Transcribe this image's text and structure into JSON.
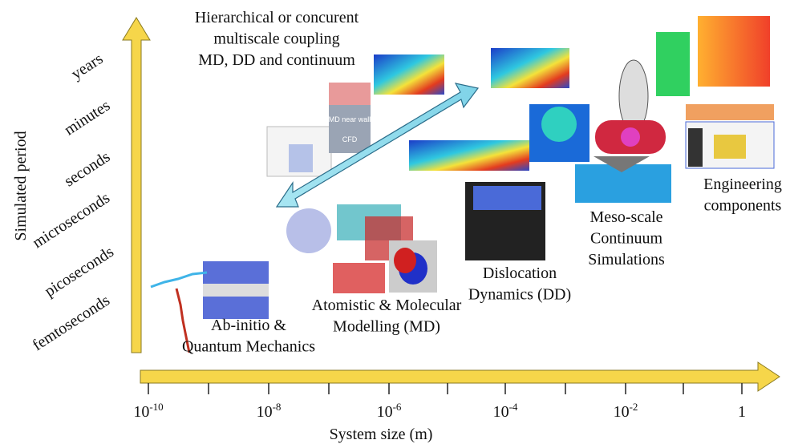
{
  "y_axis": {
    "title": "Simulated period",
    "labels": [
      "years",
      "minutes",
      "seconds",
      "microseconds",
      "picoseconds",
      "femtoseconds"
    ]
  },
  "x_axis": {
    "title": "System size (m)",
    "ticks": [
      {
        "base": "10",
        "exponent": "-10"
      },
      {
        "base": "10",
        "exponent": "-8"
      },
      {
        "base": "10",
        "exponent": "-6"
      },
      {
        "base": "10",
        "exponent": "-4"
      },
      {
        "base": "10",
        "exponent": "-2"
      },
      {
        "base": "1"
      }
    ]
  },
  "captions": [
    {
      "lines": [
        "Hierarchical or concurent",
        "multiscale coupling",
        "MD, DD and continuum"
      ]
    },
    {
      "lines": [
        "Ab-initio &",
        "Quantum Mechanics"
      ]
    },
    {
      "lines": [
        "Atomistic & Molecular",
        "Modelling (MD)"
      ]
    },
    {
      "lines": [
        "Dislocation",
        "Dynamics (DD)"
      ]
    },
    {
      "lines": [
        "Meso-scale",
        "Continuum",
        "Simulations"
      ]
    },
    {
      "lines": [
        "Engineering",
        "components"
      ]
    }
  ],
  "image_texts": [
    "MD near wall",
    "CFD"
  ]
}
